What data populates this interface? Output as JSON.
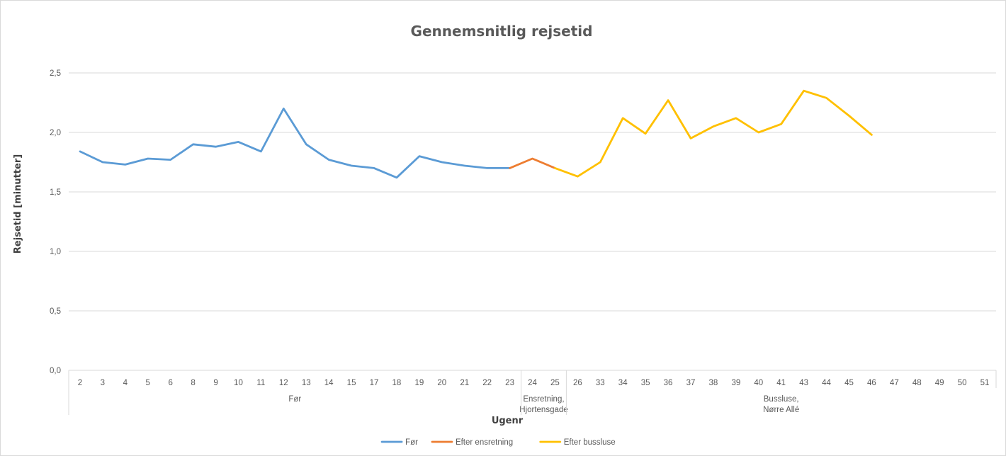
{
  "chart_data": {
    "type": "line",
    "title": "Gennemsnitlig rejsetid",
    "xlabel": "Ugenr",
    "ylabel": "Rejsetid [minutter]",
    "ylim": [
      0,
      2.5
    ],
    "yticks": [
      "0,0",
      "0,5",
      "1,0",
      "1,5",
      "2,0",
      "2,5"
    ],
    "grid": true,
    "legend_position": "bottom",
    "categories": [
      "2",
      "3",
      "4",
      "5",
      "6",
      "8",
      "9",
      "10",
      "11",
      "12",
      "13",
      "14",
      "15",
      "17",
      "18",
      "19",
      "20",
      "21",
      "22",
      "23",
      "24",
      "25",
      "26",
      "33",
      "34",
      "35",
      "36",
      "37",
      "38",
      "39",
      "40",
      "41",
      "43",
      "44",
      "45",
      "46",
      "47",
      "48",
      "49",
      "50",
      "51"
    ],
    "groups": [
      {
        "label_lines": [
          "Før"
        ],
        "start": 0,
        "end": 19
      },
      {
        "label_lines": [
          "Ensretning,",
          "Hjortensgade"
        ],
        "start": 20,
        "end": 21
      },
      {
        "label_lines": [
          "Bussluse,",
          "Nørre Allé"
        ],
        "start": 22,
        "end": 40
      }
    ],
    "series": [
      {
        "name": "Før",
        "color": "#5b9bd5",
        "values": [
          1.84,
          1.75,
          1.73,
          1.78,
          1.77,
          1.9,
          1.88,
          1.92,
          1.84,
          2.2,
          1.9,
          1.77,
          1.72,
          1.7,
          1.62,
          1.8,
          1.75,
          1.72,
          1.7,
          1.7,
          null,
          null,
          null,
          null,
          null,
          null,
          null,
          null,
          null,
          null,
          null,
          null,
          null,
          null,
          null,
          null,
          null,
          null,
          null,
          null,
          null
        ]
      },
      {
        "name": "Efter ensretning",
        "color": "#ed7d31",
        "values": [
          null,
          null,
          null,
          null,
          null,
          null,
          null,
          null,
          null,
          null,
          null,
          null,
          null,
          null,
          null,
          null,
          null,
          null,
          null,
          1.7,
          1.78,
          1.7,
          null,
          null,
          null,
          null,
          null,
          null,
          null,
          null,
          null,
          null,
          null,
          null,
          null,
          null,
          null,
          null,
          null,
          null,
          null
        ]
      },
      {
        "name": "Efter bussluse",
        "color": "#ffc000",
        "values": [
          null,
          null,
          null,
          null,
          null,
          null,
          null,
          null,
          null,
          null,
          null,
          null,
          null,
          null,
          null,
          null,
          null,
          null,
          null,
          null,
          null,
          1.7,
          1.63,
          1.75,
          2.12,
          1.99,
          2.27,
          1.95,
          2.05,
          2.12,
          2.0,
          2.07,
          2.35,
          2.29,
          2.14,
          1.98,
          null,
          null,
          null,
          null,
          null
        ]
      }
    ]
  }
}
